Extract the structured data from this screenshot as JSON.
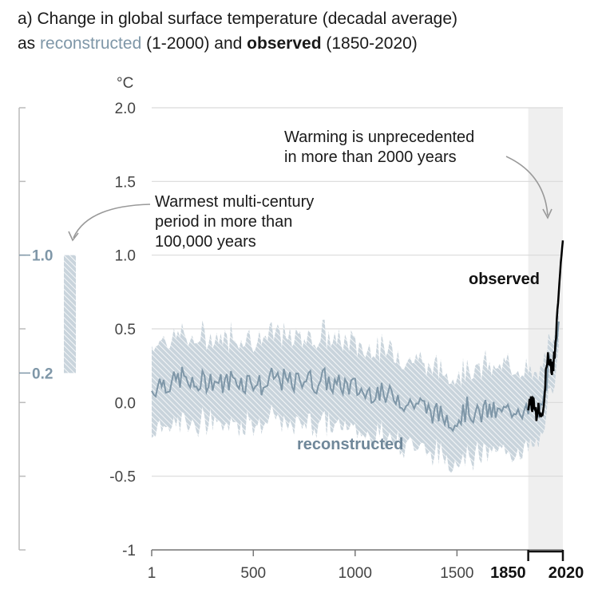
{
  "title": {
    "line1": "a) Change in global surface temperature (decadal average)",
    "as": "as ",
    "reconstructed": "reconstructed",
    "range1": " (1-2000) and ",
    "observed": "observed",
    "range2": " (1850-2020)"
  },
  "colors": {
    "reconstructed": "#7f97a8",
    "band": "#b3c2cd",
    "observed": "#000000",
    "shade": "#efefef",
    "grid": "#d9d9d9"
  },
  "chart_data": {
    "type": "line",
    "y_unit": "°C",
    "ylim": [
      -1,
      2
    ],
    "xlim": [
      1,
      2020
    ],
    "grid": true,
    "y_ticks": [
      "2.0",
      "1.5",
      "1.0",
      "0.5",
      "0.0",
      "-0.5",
      "-1"
    ],
    "x_ticks": [
      "1",
      "500",
      "1000",
      "1500"
    ],
    "x_ticks_bold": [
      "1850",
      "2020"
    ],
    "shaded_period": [
      1850,
      2020
    ],
    "side_panel": {
      "label": "Warmest multi-century period in more than 100,000 years",
      "range": [
        0.2,
        1.0
      ],
      "tick_labels": [
        "1.0",
        "0.2"
      ]
    },
    "annotations": {
      "warming_line1": "Warming is unprecedented",
      "warming_line2": "in more than 2000 years",
      "warmest_line1": "Warmest multi-century",
      "warmest_line2": "period in more than",
      "warmest_line3": "100,000 years"
    },
    "series": [
      {
        "name": "reconstructed",
        "x": [
          1,
          50,
          100,
          150,
          200,
          250,
          300,
          350,
          400,
          450,
          500,
          550,
          600,
          650,
          700,
          750,
          800,
          850,
          900,
          950,
          1000,
          1050,
          1100,
          1150,
          1200,
          1250,
          1300,
          1350,
          1400,
          1450,
          1500,
          1550,
          1600,
          1650,
          1700,
          1750,
          1800,
          1850,
          1870,
          1890,
          1910,
          1930,
          1950,
          1970,
          1990,
          2000
        ],
        "values": [
          0.08,
          0.15,
          0.12,
          0.18,
          0.1,
          0.14,
          0.16,
          0.12,
          0.17,
          0.14,
          0.15,
          0.1,
          0.17,
          0.15,
          0.12,
          0.18,
          0.13,
          0.16,
          0.11,
          0.12,
          0.1,
          0.06,
          0.09,
          0.03,
          0.06,
          -0.01,
          0.0,
          -0.04,
          -0.08,
          -0.1,
          -0.12,
          -0.04,
          -0.09,
          -0.05,
          -0.08,
          -0.06,
          -0.02,
          -0.08,
          -0.04,
          -0.1,
          -0.05,
          0.05,
          0.25,
          0.2,
          0.35,
          0.55
        ],
        "upper": [
          0.38,
          0.45,
          0.42,
          0.48,
          0.4,
          0.44,
          0.46,
          0.42,
          0.47,
          0.44,
          0.45,
          0.4,
          0.47,
          0.45,
          0.42,
          0.48,
          0.43,
          0.46,
          0.41,
          0.42,
          0.4,
          0.36,
          0.39,
          0.33,
          0.36,
          0.29,
          0.3,
          0.26,
          0.22,
          0.2,
          0.18,
          0.26,
          0.21,
          0.25,
          0.22,
          0.24,
          0.28,
          0.18,
          0.2,
          0.14,
          0.17,
          0.26,
          0.42,
          0.38,
          0.52,
          0.7
        ],
        "lower": [
          -0.2,
          -0.13,
          -0.16,
          -0.1,
          -0.18,
          -0.14,
          -0.12,
          -0.16,
          -0.11,
          -0.14,
          -0.13,
          -0.18,
          -0.11,
          -0.13,
          -0.16,
          -0.1,
          -0.15,
          -0.12,
          -0.17,
          -0.16,
          -0.18,
          -0.22,
          -0.19,
          -0.25,
          -0.22,
          -0.29,
          -0.28,
          -0.32,
          -0.36,
          -0.38,
          -0.4,
          -0.32,
          -0.37,
          -0.33,
          -0.36,
          -0.34,
          -0.3,
          -0.3,
          -0.26,
          -0.32,
          -0.27,
          -0.17,
          0.06,
          0.02,
          0.18,
          0.38
        ]
      },
      {
        "name": "observed",
        "x": [
          1850,
          1860,
          1870,
          1880,
          1890,
          1900,
          1910,
          1920,
          1930,
          1940,
          1950,
          1960,
          1970,
          1980,
          1990,
          2000,
          2010,
          2020
        ],
        "values": [
          -0.05,
          0.03,
          -0.02,
          0.02,
          -0.08,
          -0.05,
          -0.1,
          -0.04,
          0.05,
          0.3,
          0.28,
          0.25,
          0.22,
          0.35,
          0.55,
          0.75,
          0.95,
          1.1
        ]
      }
    ]
  }
}
